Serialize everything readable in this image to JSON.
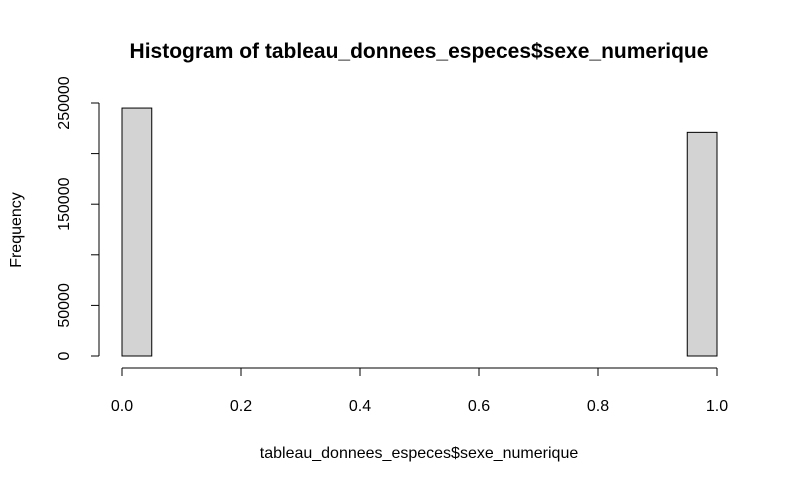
{
  "chart_data": {
    "type": "bar",
    "title": "Histogram of tableau_donnees_especes$sexe_numerique",
    "xlabel": "tableau_donnees_especes$sexe_numerique",
    "ylabel": "Frequency",
    "xlim": [
      0,
      1
    ],
    "ylim": [
      0,
      250000
    ],
    "x_ticks": [
      "0.0",
      "0.2",
      "0.4",
      "0.6",
      "0.8",
      "1.0"
    ],
    "y_ticks": [
      "0",
      "50000",
      "150000",
      "250000"
    ],
    "bin_width": 0.05,
    "bins": [
      {
        "start": 0.0,
        "end": 0.05,
        "count": 245000
      },
      {
        "start": 0.05,
        "end": 0.1,
        "count": 0
      },
      {
        "start": 0.1,
        "end": 0.15,
        "count": 0
      },
      {
        "start": 0.15,
        "end": 0.2,
        "count": 0
      },
      {
        "start": 0.2,
        "end": 0.25,
        "count": 0
      },
      {
        "start": 0.25,
        "end": 0.3,
        "count": 0
      },
      {
        "start": 0.3,
        "end": 0.35,
        "count": 0
      },
      {
        "start": 0.35,
        "end": 0.4,
        "count": 0
      },
      {
        "start": 0.4,
        "end": 0.45,
        "count": 0
      },
      {
        "start": 0.45,
        "end": 0.5,
        "count": 0
      },
      {
        "start": 0.5,
        "end": 0.55,
        "count": 0
      },
      {
        "start": 0.55,
        "end": 0.6,
        "count": 0
      },
      {
        "start": 0.6,
        "end": 0.65,
        "count": 0
      },
      {
        "start": 0.65,
        "end": 0.7,
        "count": 0
      },
      {
        "start": 0.7,
        "end": 0.75,
        "count": 0
      },
      {
        "start": 0.75,
        "end": 0.8,
        "count": 0
      },
      {
        "start": 0.8,
        "end": 0.85,
        "count": 0
      },
      {
        "start": 0.85,
        "end": 0.9,
        "count": 0
      },
      {
        "start": 0.9,
        "end": 0.95,
        "count": 0
      },
      {
        "start": 0.95,
        "end": 1.0,
        "count": 221000
      }
    ],
    "grid": false,
    "bar_color": "#d3d3d3",
    "bar_stroke": "#000000"
  }
}
